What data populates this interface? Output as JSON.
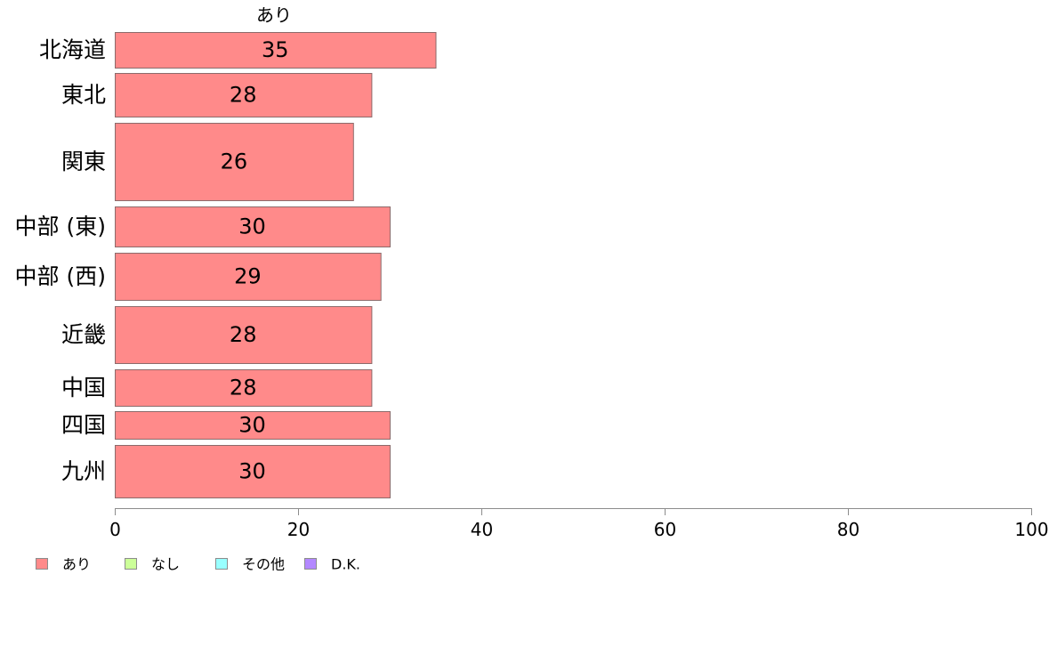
{
  "chart_data": {
    "type": "bar",
    "orientation": "horizontal",
    "title": "あり",
    "categories": [
      "北海道",
      "東北",
      "関東",
      "中部 (東)",
      "中部 (西)",
      "近畿",
      "中国",
      "四国",
      "九州"
    ],
    "series": [
      {
        "name": "あり",
        "color": "#ff8a8a",
        "values": [
          35,
          28,
          26,
          30,
          29,
          28,
          28,
          30,
          30
        ]
      }
    ],
    "value_labels": [
      "35",
      "28",
      "26",
      "30",
      "29",
      "28",
      "28",
      "30",
      "30"
    ],
    "xlim": [
      0,
      100
    ],
    "xticks": [
      0,
      20,
      40,
      60,
      80,
      100
    ],
    "grid": false,
    "legend": {
      "placement": "bottom-left",
      "items": [
        {
          "label": "あり",
          "color": "#ff8a8a"
        },
        {
          "label": "なし",
          "color": "#ccff99"
        },
        {
          "label": "その他",
          "color": "#99ffff"
        },
        {
          "label": "D.K.",
          "color": "#b388ff"
        }
      ]
    },
    "bar_border_color": "#8c6b6b",
    "axis_color": "#8c8c8c"
  }
}
